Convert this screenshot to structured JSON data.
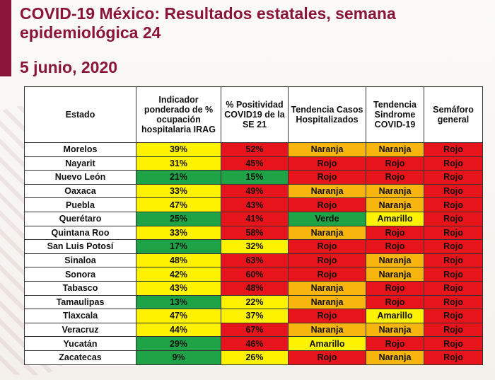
{
  "title": "COVID-19 México: Resultados estatales, semana epidemiológica 24",
  "date": "5 junio, 2020",
  "colors": {
    "accent": "#8a1538",
    "verde": "#1fa347",
    "amarillo": "#fff200",
    "naranja": "#f8b50e",
    "rojo": "#e8141b"
  },
  "table": {
    "headers": [
      "Estado",
      "Indicador ponderado de % ocupación hospitalaria IRAG",
      "% Positividad COVID19 de la SE 21",
      "Tendencia Casos Hospitalizados",
      "Tendencia Sindrome COVID-19",
      "Semáforo general"
    ],
    "rows": [
      {
        "estado": "Morelos",
        "ocupacion": "39%",
        "ocupacion_color": "yellow",
        "positividad": "52%",
        "positividad_color": "red",
        "casos": "Naranja",
        "casos_color": "orange",
        "sindrome": "Naranja",
        "sindrome_color": "orange",
        "semaforo": "Rojo",
        "semaforo_color": "red"
      },
      {
        "estado": "Nayarit",
        "ocupacion": "31%",
        "ocupacion_color": "yellow",
        "positividad": "45%",
        "positividad_color": "red",
        "casos": "Rojo",
        "casos_color": "red",
        "sindrome": "Rojo",
        "sindrome_color": "red",
        "semaforo": "Rojo",
        "semaforo_color": "red"
      },
      {
        "estado": "Nuevo León",
        "ocupacion": "21%",
        "ocupacion_color": "green",
        "positividad": "15%",
        "positividad_color": "green",
        "casos": "Rojo",
        "casos_color": "red",
        "sindrome": "Rojo",
        "sindrome_color": "red",
        "semaforo": "Rojo",
        "semaforo_color": "red"
      },
      {
        "estado": "Oaxaca",
        "ocupacion": "33%",
        "ocupacion_color": "yellow",
        "positividad": "49%",
        "positividad_color": "red",
        "casos": "Naranja",
        "casos_color": "orange",
        "sindrome": "Naranja",
        "sindrome_color": "orange",
        "semaforo": "Rojo",
        "semaforo_color": "red"
      },
      {
        "estado": "Puebla",
        "ocupacion": "47%",
        "ocupacion_color": "yellow",
        "positividad": "43%",
        "positividad_color": "red",
        "casos": "Rojo",
        "casos_color": "red",
        "sindrome": "Naranja",
        "sindrome_color": "orange",
        "semaforo": "Rojo",
        "semaforo_color": "red"
      },
      {
        "estado": "Querétaro",
        "ocupacion": "25%",
        "ocupacion_color": "green",
        "positividad": "41%",
        "positividad_color": "red",
        "casos": "Verde",
        "casos_color": "green",
        "sindrome": "Amarillo",
        "sindrome_color": "yellow",
        "semaforo": "Rojo",
        "semaforo_color": "red"
      },
      {
        "estado": "Quintana Roo",
        "ocupacion": "33%",
        "ocupacion_color": "yellow",
        "positividad": "58%",
        "positividad_color": "red",
        "casos": "Naranja",
        "casos_color": "orange",
        "sindrome": "Rojo",
        "sindrome_color": "red",
        "semaforo": "Rojo",
        "semaforo_color": "red"
      },
      {
        "estado": "San Luis Potosí",
        "ocupacion": "17%",
        "ocupacion_color": "green",
        "positividad": "32%",
        "positividad_color": "yellow",
        "casos": "Rojo",
        "casos_color": "red",
        "sindrome": "Rojo",
        "sindrome_color": "red",
        "semaforo": "Rojo",
        "semaforo_color": "red"
      },
      {
        "estado": "Sinaloa",
        "ocupacion": "48%",
        "ocupacion_color": "yellow",
        "positividad": "63%",
        "positividad_color": "red",
        "casos": "Rojo",
        "casos_color": "red",
        "sindrome": "Naranja",
        "sindrome_color": "orange",
        "semaforo": "Rojo",
        "semaforo_color": "red"
      },
      {
        "estado": "Sonora",
        "ocupacion": "42%",
        "ocupacion_color": "yellow",
        "positividad": "60%",
        "positividad_color": "red",
        "casos": "Rojo",
        "casos_color": "red",
        "sindrome": "Naranja",
        "sindrome_color": "orange",
        "semaforo": "Rojo",
        "semaforo_color": "red"
      },
      {
        "estado": "Tabasco",
        "ocupacion": "43%",
        "ocupacion_color": "yellow",
        "positividad": "48%",
        "positividad_color": "red",
        "casos": "Naranja",
        "casos_color": "orange",
        "sindrome": "Rojo",
        "sindrome_color": "red",
        "semaforo": "Rojo",
        "semaforo_color": "red"
      },
      {
        "estado": "Tamaulipas",
        "ocupacion": "13%",
        "ocupacion_color": "green",
        "positividad": "22%",
        "positividad_color": "yellow",
        "casos": "Naranja",
        "casos_color": "orange",
        "sindrome": "Rojo",
        "sindrome_color": "red",
        "semaforo": "Rojo",
        "semaforo_color": "red"
      },
      {
        "estado": "Tlaxcala",
        "ocupacion": "47%",
        "ocupacion_color": "yellow",
        "positividad": "37%",
        "positividad_color": "yellow",
        "casos": "Rojo",
        "casos_color": "red",
        "sindrome": "Amarillo",
        "sindrome_color": "yellow",
        "semaforo": "Rojo",
        "semaforo_color": "red"
      },
      {
        "estado": "Veracruz",
        "ocupacion": "44%",
        "ocupacion_color": "yellow",
        "positividad": "67%",
        "positividad_color": "red",
        "casos": "Naranja",
        "casos_color": "orange",
        "sindrome": "Naranja",
        "sindrome_color": "orange",
        "semaforo": "Rojo",
        "semaforo_color": "red"
      },
      {
        "estado": "Yucatán",
        "ocupacion": "29%",
        "ocupacion_color": "green",
        "positividad": "46%",
        "positividad_color": "red",
        "casos": "Amarillo",
        "casos_color": "yellow",
        "sindrome": "Rojo",
        "sindrome_color": "red",
        "semaforo": "Rojo",
        "semaforo_color": "red"
      },
      {
        "estado": "Zacatecas",
        "ocupacion": "9%",
        "ocupacion_color": "green",
        "positividad": "26%",
        "positividad_color": "yellow",
        "casos": "Rojo",
        "casos_color": "red",
        "sindrome": "Naranja",
        "sindrome_color": "orange",
        "semaforo": "Rojo",
        "semaforo_color": "red"
      }
    ]
  }
}
